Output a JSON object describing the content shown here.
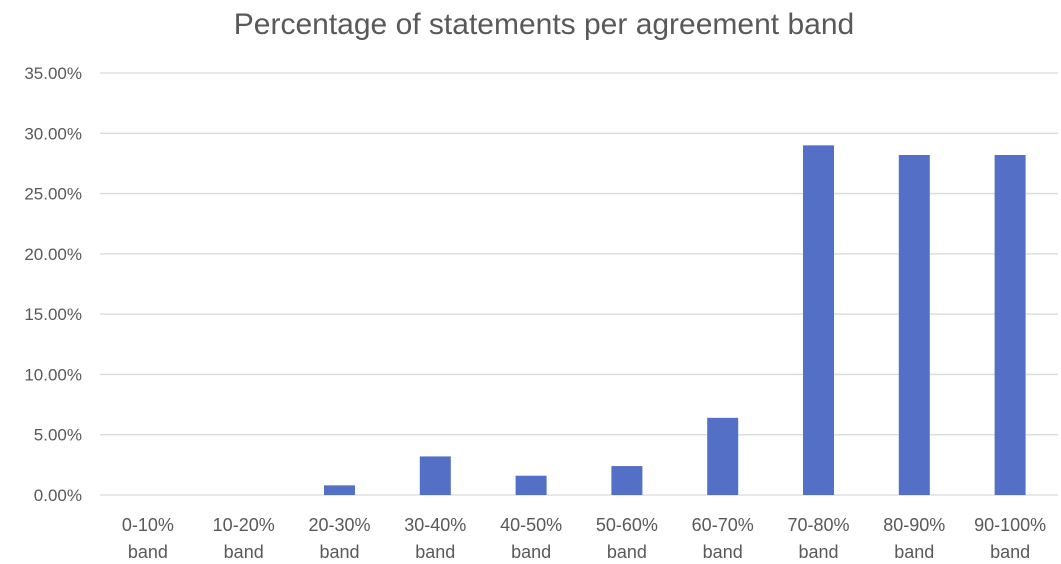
{
  "chart_data": {
    "type": "bar",
    "title": "Percentage of statements per agreement band",
    "xlabel": "",
    "ylabel": "",
    "categories": [
      [
        "0-10%",
        "band"
      ],
      [
        "10-20%",
        "band"
      ],
      [
        "20-30%",
        "band"
      ],
      [
        "30-40%",
        "band"
      ],
      [
        "40-50%",
        "band"
      ],
      [
        "50-60%",
        "band"
      ],
      [
        "60-70%",
        "band"
      ],
      [
        "70-80%",
        "band"
      ],
      [
        "80-90%",
        "band"
      ],
      [
        "90-100%",
        "band"
      ]
    ],
    "values": [
      0.0,
      0.0,
      0.8,
      3.2,
      1.6,
      2.4,
      6.4,
      29.0,
      28.2,
      28.2
    ],
    "ylim": [
      0,
      35
    ],
    "yticks": [
      0,
      5,
      10,
      15,
      20,
      25,
      30,
      35
    ],
    "ytick_labels": [
      "0.00%",
      "5.00%",
      "10.00%",
      "15.00%",
      "20.00%",
      "25.00%",
      "30.00%",
      "35.00%"
    ],
    "grid": true,
    "legend": "none",
    "colors": {
      "bar": "#5470c6",
      "grid": "#d9d9d9",
      "text": "#595959"
    }
  }
}
